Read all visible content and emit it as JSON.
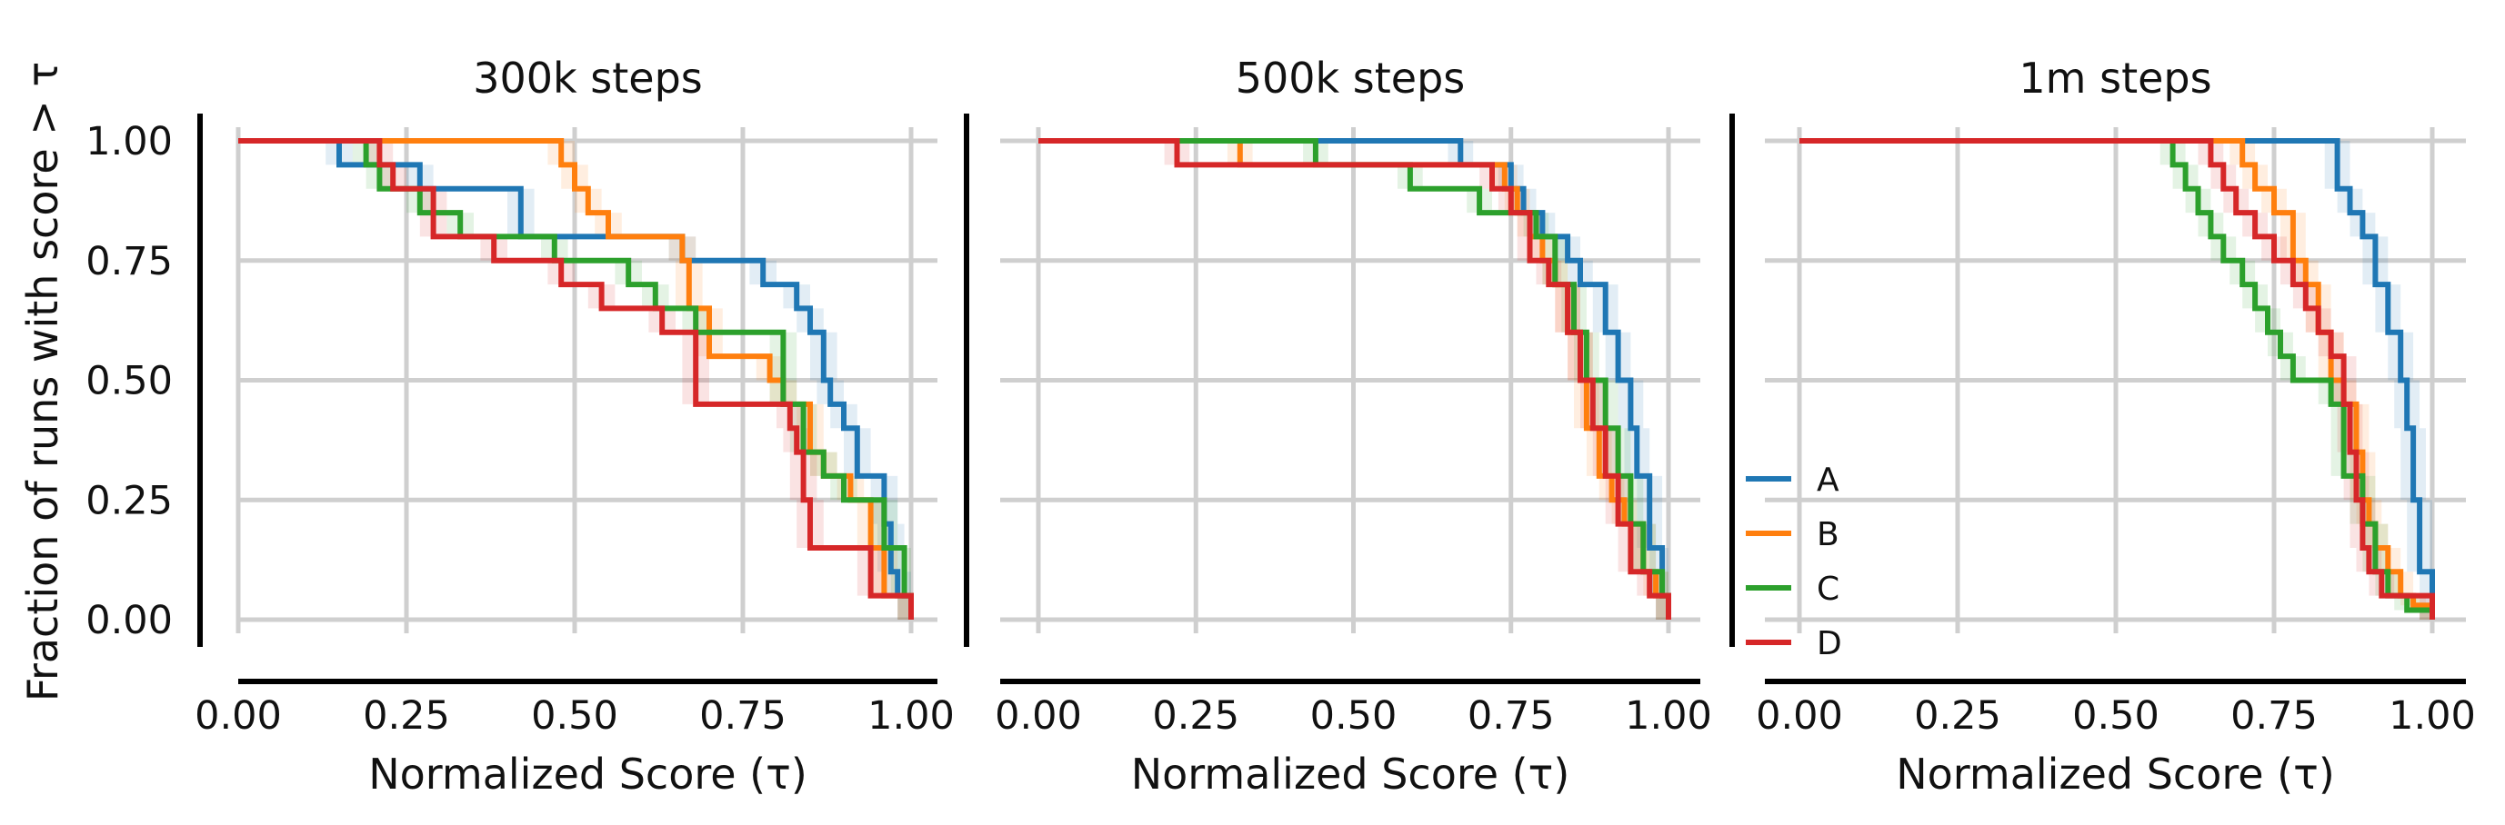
{
  "figure": {
    "ylabel": "Fraction of runs with score > τ",
    "xlabel": "Normalized Score (τ)"
  },
  "legend": {
    "placement": "inside third panel, lower-left",
    "entries": [
      {
        "label": "A",
        "color": "#1f77b4"
      },
      {
        "label": "B",
        "color": "#ff7f0e"
      },
      {
        "label": "C",
        "color": "#2ca02c"
      },
      {
        "label": "D",
        "color": "#d62728"
      }
    ]
  },
  "chart_data": [
    {
      "type": "line",
      "title": "300k steps",
      "xlabel": "Normalized Score (τ)",
      "ylabel": "Fraction of runs with score > τ",
      "xlim": [
        0,
        1
      ],
      "ylim": [
        0,
        1
      ],
      "xticks": [
        "0.00",
        "0.25",
        "0.50",
        "0.75",
        "1.00"
      ],
      "yticks": [
        "0.00",
        "0.25",
        "0.50",
        "0.75",
        "1.00"
      ],
      "grid": true,
      "step": true,
      "series": [
        {
          "name": "A",
          "color": "#1f77b4",
          "x": [
            0,
            0.15,
            0.27,
            0.42,
            0.66,
            0.78,
            0.83,
            0.85,
            0.87,
            0.88,
            0.9,
            0.92,
            0.96,
            0.97,
            0.98,
            1.0
          ],
          "y": [
            1.0,
            0.95,
            0.9,
            0.8,
            0.75,
            0.7,
            0.65,
            0.6,
            0.5,
            0.45,
            0.4,
            0.3,
            0.2,
            0.1,
            0.05,
            0.0
          ]
        },
        {
          "name": "B",
          "color": "#ff7f0e",
          "x": [
            0,
            0.48,
            0.5,
            0.52,
            0.55,
            0.66,
            0.67,
            0.7,
            0.79,
            0.81,
            0.85,
            0.87,
            0.91,
            0.94,
            0.96,
            1.0
          ],
          "y": [
            1.0,
            0.95,
            0.9,
            0.85,
            0.8,
            0.75,
            0.65,
            0.55,
            0.5,
            0.45,
            0.35,
            0.3,
            0.25,
            0.15,
            0.05,
            0.0
          ]
        },
        {
          "name": "C",
          "color": "#2ca02c",
          "x": [
            0,
            0.19,
            0.21,
            0.27,
            0.33,
            0.47,
            0.58,
            0.62,
            0.68,
            0.81,
            0.84,
            0.87,
            0.9,
            0.96,
            0.99,
            1.0
          ],
          "y": [
            1.0,
            0.95,
            0.9,
            0.85,
            0.8,
            0.75,
            0.7,
            0.65,
            0.6,
            0.45,
            0.35,
            0.3,
            0.25,
            0.15,
            0.05,
            0.0
          ]
        },
        {
          "name": "D",
          "color": "#d62728",
          "x": [
            0,
            0.21,
            0.23,
            0.29,
            0.38,
            0.48,
            0.54,
            0.63,
            0.68,
            0.82,
            0.83,
            0.84,
            0.85,
            0.94,
            0.98,
            1.0
          ],
          "y": [
            1.0,
            0.95,
            0.9,
            0.8,
            0.75,
            0.7,
            0.65,
            0.6,
            0.45,
            0.4,
            0.35,
            0.25,
            0.15,
            0.05,
            0.05,
            0.0
          ]
        }
      ]
    },
    {
      "type": "line",
      "title": "500k steps",
      "xlabel": "Normalized Score (τ)",
      "ylabel": "",
      "xlim": [
        0,
        1
      ],
      "ylim": [
        0,
        1
      ],
      "xticks": [
        "0.00",
        "0.25",
        "0.50",
        "0.75",
        "1.00"
      ],
      "yticks": [],
      "grid": true,
      "step": true,
      "series": [
        {
          "name": "A",
          "color": "#1f77b4",
          "x": [
            0,
            0.67,
            0.75,
            0.77,
            0.8,
            0.84,
            0.86,
            0.9,
            0.92,
            0.94,
            0.95,
            0.97,
            0.99,
            1.0
          ],
          "y": [
            1.0,
            0.95,
            0.9,
            0.85,
            0.8,
            0.75,
            0.7,
            0.6,
            0.5,
            0.4,
            0.3,
            0.15,
            0.05,
            0.0
          ]
        },
        {
          "name": "B",
          "color": "#ff7f0e",
          "x": [
            0,
            0.32,
            0.74,
            0.76,
            0.78,
            0.8,
            0.82,
            0.84,
            0.86,
            0.87,
            0.89,
            0.91,
            0.93,
            0.96,
            0.98,
            1.0
          ],
          "y": [
            1.0,
            0.95,
            0.9,
            0.85,
            0.8,
            0.75,
            0.7,
            0.6,
            0.5,
            0.4,
            0.3,
            0.25,
            0.2,
            0.1,
            0.05,
            0.0
          ]
        },
        {
          "name": "C",
          "color": "#2ca02c",
          "x": [
            0,
            0.44,
            0.59,
            0.7,
            0.79,
            0.82,
            0.85,
            0.87,
            0.9,
            0.92,
            0.94,
            0.96,
            0.99,
            1.0
          ],
          "y": [
            1.0,
            0.95,
            0.9,
            0.85,
            0.8,
            0.7,
            0.6,
            0.5,
            0.4,
            0.3,
            0.2,
            0.1,
            0.05,
            0.0
          ]
        },
        {
          "name": "D",
          "color": "#d62728",
          "x": [
            0,
            0.22,
            0.72,
            0.75,
            0.78,
            0.81,
            0.84,
            0.86,
            0.88,
            0.9,
            0.92,
            0.94,
            0.97,
            1.0
          ],
          "y": [
            1.0,
            0.95,
            0.9,
            0.85,
            0.75,
            0.7,
            0.6,
            0.5,
            0.4,
            0.3,
            0.2,
            0.1,
            0.05,
            0.0
          ]
        }
      ]
    },
    {
      "type": "line",
      "title": "1m steps",
      "xlabel": "Normalized Score (τ)",
      "ylabel": "",
      "xlim": [
        0,
        1
      ],
      "ylim": [
        0,
        1
      ],
      "xticks": [
        "0.00",
        "0.25",
        "0.50",
        "0.75",
        "1.00"
      ],
      "yticks": [],
      "grid": true,
      "step": true,
      "series": [
        {
          "name": "A",
          "color": "#1f77b4",
          "x": [
            0,
            0.85,
            0.87,
            0.89,
            0.91,
            0.93,
            0.95,
            0.96,
            0.97,
            0.98,
            1.0
          ],
          "y": [
            1.0,
            0.9,
            0.85,
            0.8,
            0.7,
            0.6,
            0.5,
            0.4,
            0.25,
            0.1,
            0.0
          ]
        },
        {
          "name": "B",
          "color": "#ff7f0e",
          "x": [
            0,
            0.7,
            0.72,
            0.75,
            0.78,
            0.8,
            0.82,
            0.84,
            0.86,
            0.88,
            0.89,
            0.9,
            0.91,
            0.93,
            0.95,
            0.97,
            1.0
          ],
          "y": [
            1.0,
            0.95,
            0.9,
            0.85,
            0.75,
            0.7,
            0.6,
            0.5,
            0.45,
            0.35,
            0.25,
            0.2,
            0.15,
            0.1,
            0.05,
            0.03,
            0.0
          ]
        },
        {
          "name": "C",
          "color": "#2ca02c",
          "x": [
            0,
            0.59,
            0.61,
            0.63,
            0.65,
            0.67,
            0.7,
            0.72,
            0.74,
            0.76,
            0.78,
            0.8,
            0.82,
            0.84,
            0.86,
            0.89,
            0.91,
            0.93,
            0.96,
            1.0
          ],
          "y": [
            1.0,
            0.95,
            0.9,
            0.85,
            0.8,
            0.75,
            0.7,
            0.65,
            0.6,
            0.55,
            0.5,
            0.5,
            0.5,
            0.45,
            0.3,
            0.2,
            0.1,
            0.05,
            0.02,
            0.0
          ]
        },
        {
          "name": "D",
          "color": "#d62728",
          "x": [
            0,
            0.65,
            0.67,
            0.69,
            0.72,
            0.75,
            0.78,
            0.8,
            0.82,
            0.84,
            0.86,
            0.87,
            0.88,
            0.89,
            0.9,
            0.92,
            0.94,
            0.96,
            0.98,
            1.0
          ],
          "y": [
            1.0,
            0.95,
            0.9,
            0.85,
            0.8,
            0.75,
            0.7,
            0.65,
            0.6,
            0.55,
            0.45,
            0.35,
            0.25,
            0.15,
            0.1,
            0.05,
            0.05,
            0.05,
            0.05,
            0.0
          ]
        }
      ]
    }
  ]
}
